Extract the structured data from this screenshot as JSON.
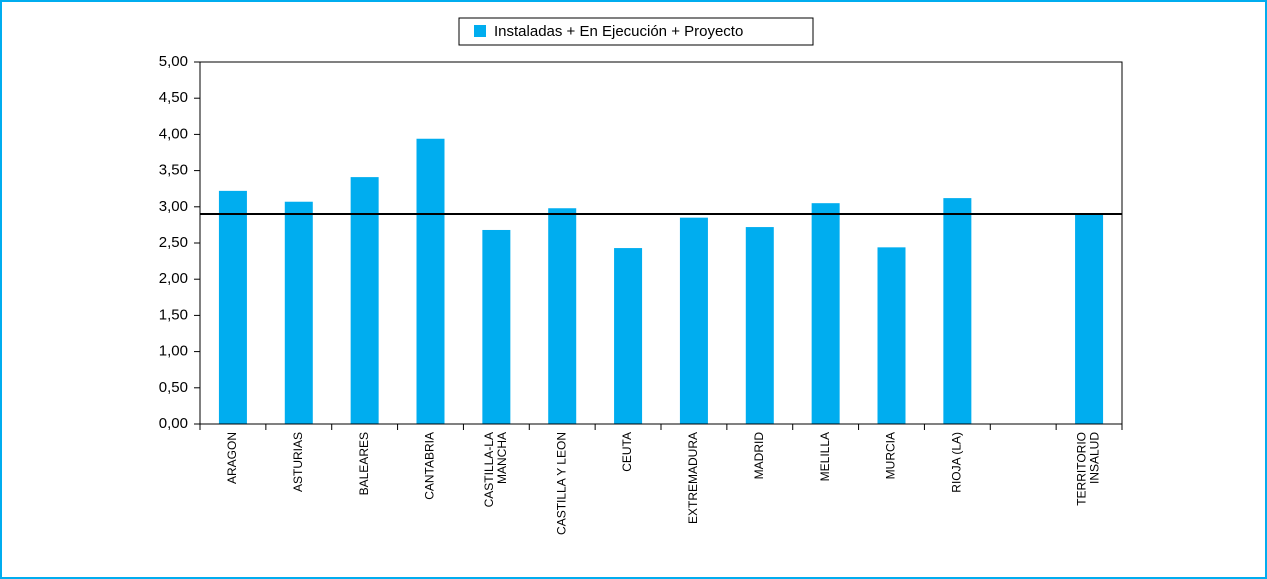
{
  "chart_data": {
    "type": "bar",
    "legend": "Instaladas + En Ejecución + Proyecto",
    "color": "#00adef",
    "categories": [
      "ARAGON",
      "ASTURIAS",
      "BALEARES",
      "CANTABRIA",
      "CASTILLA-LA\nMANCHA",
      "CASTILLA Y LEON",
      "CEUTA",
      "EXTREMADURA",
      "MADRID",
      "MELILLA",
      "MURCIA",
      "RIOJA (LA)",
      null,
      "TERRITORIO\nINSALUD"
    ],
    "values": [
      3.22,
      3.07,
      3.41,
      3.94,
      2.68,
      2.98,
      2.43,
      2.85,
      2.72,
      3.05,
      2.44,
      3.12,
      null,
      2.91
    ],
    "hline": 2.9,
    "ylim": [
      0,
      5
    ],
    "yticks": [
      {
        "value": 0,
        "label": "0,00"
      },
      {
        "value": 0.5,
        "label": "0,50"
      },
      {
        "value": 1,
        "label": "1,00"
      },
      {
        "value": 1.5,
        "label": "1,50"
      },
      {
        "value": 2,
        "label": "2,00"
      },
      {
        "value": 2.5,
        "label": "2,50"
      },
      {
        "value": 3,
        "label": "3,00"
      },
      {
        "value": 3.5,
        "label": "3,50"
      },
      {
        "value": 4,
        "label": "4,00"
      },
      {
        "value": 4.5,
        "label": "4,50"
      },
      {
        "value": 5,
        "label": "5,00"
      }
    ]
  }
}
